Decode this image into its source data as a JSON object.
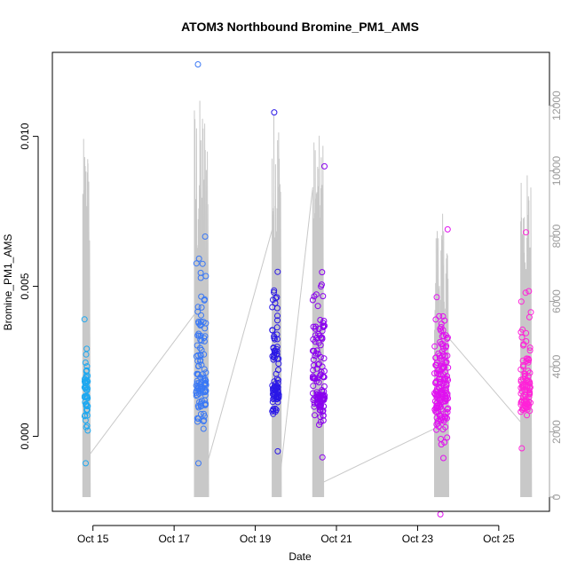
{
  "chart_data": {
    "type": "scatter",
    "title": "ATOM3 Northbound Bromine_PM1_AMS",
    "xlabel": "Date",
    "ylabel": "Bromine_PM1_AMS",
    "x_ticks": [
      "Oct 15",
      "Oct 17",
      "Oct 19",
      "Oct 21",
      "Oct 23",
      "Oct 25"
    ],
    "y_ticks": [
      "0.000",
      "0.005",
      "0.010"
    ],
    "y2_ticks": [
      "0",
      "2000",
      "4000",
      "6000",
      "8000",
      "10000",
      "12000"
    ],
    "xlim": [
      "2017-10-14 00:00",
      "2017-10-26 06:00"
    ],
    "ylim": [
      -0.0025,
      0.0128
    ],
    "y2lim": [
      0,
      12000
    ],
    "point_colors": [
      "#1ea8f0",
      "#3a78f5",
      "#2a18e6",
      "#8a00ee",
      "#e010f0",
      "#ff22d8"
    ],
    "line_color": "#c8c8c8",
    "right_axis_color": "#a0a0a0",
    "series": [
      {
        "color": "#1ea8f0",
        "x": [
          "2017-10-14 19:00",
          "2017-10-14 21:00"
        ],
        "y": [
          -0.0009,
          0.0039
        ],
        "summary": {
          "y_min": -0.0009,
          "y_max": 0.0039,
          "y_center": 0.0015,
          "n": 55
        }
      },
      {
        "color": "#3a78f5",
        "x": [
          "2017-10-17 13:00",
          "2017-10-17 19:00"
        ],
        "y": [
          -0.0009,
          0.0124
        ],
        "summary": {
          "y_min": -0.0009,
          "y_max": 0.0124,
          "y_center": 0.0018,
          "n": 110
        }
      },
      {
        "color": "#2a18e6",
        "x": [
          "2017-10-19 10:00",
          "2017-10-19 14:00"
        ],
        "y": [
          -0.0005,
          0.0108
        ],
        "summary": {
          "y_min": -0.0005,
          "y_max": 0.0108,
          "y_center": 0.0017,
          "n": 90
        }
      },
      {
        "color": "#8a00ee",
        "x": [
          "2017-10-20 10:00",
          "2017-10-20 17:00"
        ],
        "y": [
          -0.0007,
          0.009
        ],
        "summary": {
          "y_min": -0.0007,
          "y_max": 0.009,
          "y_center": 0.0015,
          "n": 120
        }
      },
      {
        "color": "#e010f0",
        "x": [
          "2017-10-23 10:00",
          "2017-10-23 18:00"
        ],
        "y": [
          -0.0026,
          0.0069
        ],
        "summary": {
          "y_min": -0.0026,
          "y_max": 0.0069,
          "y_center": 0.0017,
          "n": 160
        }
      },
      {
        "color": "#ff22d8",
        "x": [
          "2017-10-25 13:00",
          "2017-10-25 19:00"
        ],
        "y": [
          -0.0004,
          0.0068
        ],
        "summary": {
          "y_min": -0.0004,
          "y_max": 0.0068,
          "y_center": 0.0017,
          "n": 95
        }
      }
    ],
    "altitude_line": {
      "note": "grey altitude line on right axis (0-12000)",
      "segments": [
        {
          "x": [
            "2017-10-14 18:00",
            "2017-10-14 22:00"
          ],
          "y2": [
            0,
            11000
          ]
        },
        {
          "x": [
            "2017-10-14 22:00",
            "2017-10-17 12:00"
          ],
          "y2": [
            1300,
            5600
          ]
        },
        {
          "x": [
            "2017-10-17 12:00",
            "2017-10-17 20:00"
          ],
          "y2": [
            0,
            12300
          ]
        },
        {
          "x": [
            "2017-10-17 20:00",
            "2017-10-19 10:00"
          ],
          "y2": [
            1100,
            8200
          ]
        },
        {
          "x": [
            "2017-10-19 10:00",
            "2017-10-19 15:00"
          ],
          "y2": [
            0,
            12000
          ]
        },
        {
          "x": [
            "2017-10-19 15:00",
            "2017-10-20 10:00"
          ],
          "y2": [
            800,
            9500
          ]
        },
        {
          "x": [
            "2017-10-20 10:00",
            "2017-10-20 16:00"
          ],
          "y2": [
            0,
            11100
          ]
        },
        {
          "x": [
            "2017-10-20 16:00",
            "2017-10-23 10:00"
          ],
          "y2": [
            450,
            2100
          ]
        },
        {
          "x": [
            "2017-10-23 10:00",
            "2017-10-23 18:00"
          ],
          "y2": [
            0,
            8700
          ]
        },
        {
          "x": [
            "2017-10-23 18:00",
            "2017-10-25 13:00"
          ],
          "y2": [
            4900,
            2300
          ]
        },
        {
          "x": [
            "2017-10-25 13:00",
            "2017-10-25 19:00"
          ],
          "y2": [
            0,
            10000
          ]
        }
      ]
    },
    "grid": false,
    "legend": "none"
  }
}
